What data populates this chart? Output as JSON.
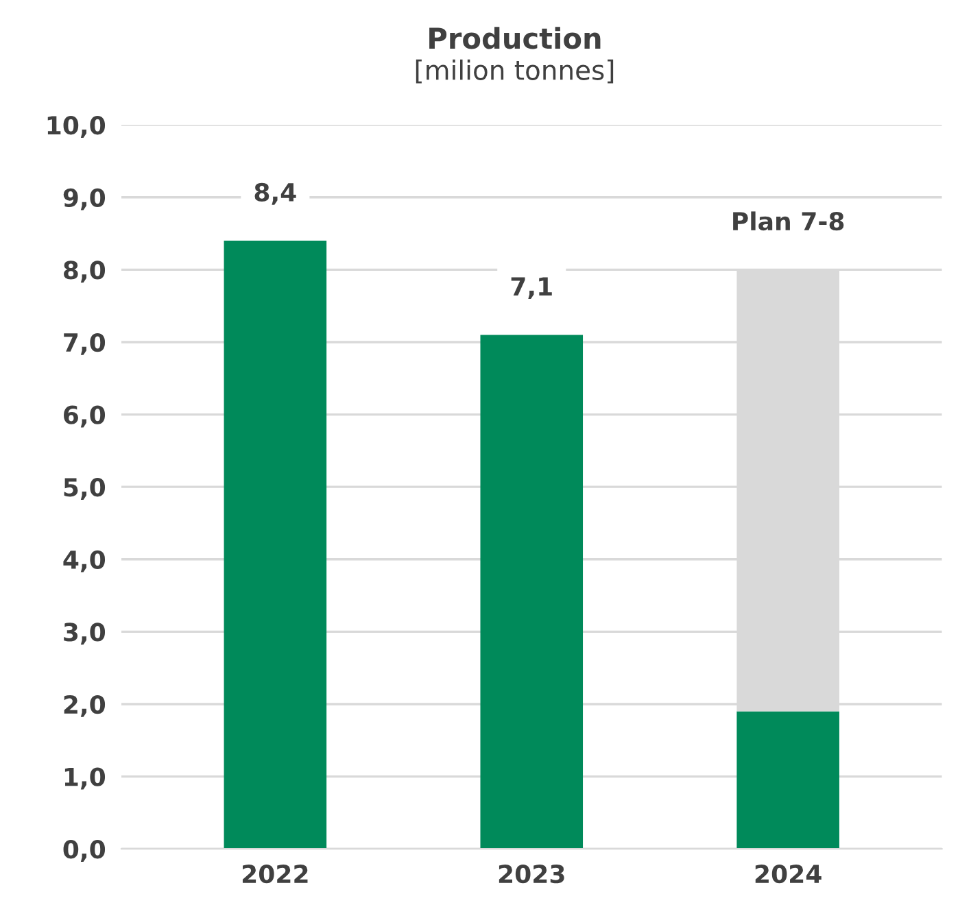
{
  "chart_data": {
    "type": "bar",
    "title": "Production",
    "subtitle": "[milion tonnes]",
    "categories": [
      "2022",
      "2023",
      "2024"
    ],
    "stacked": true,
    "series": [
      {
        "color": "#008a5a",
        "values": [
          8.4,
          7.1,
          1.9
        ],
        "value_labels": [
          "8,4",
          "7,1",
          null
        ]
      },
      {
        "color": "#d9d9d9",
        "values": [
          null,
          null,
          6.1
        ],
        "value_labels": [
          null,
          null,
          "Plan 7-8"
        ]
      }
    ],
    "ylim": [
      0,
      10
    ],
    "yticks": [
      {
        "value": 0,
        "label": "0,0"
      },
      {
        "value": 1,
        "label": "1,0"
      },
      {
        "value": 2,
        "label": "2,0"
      },
      {
        "value": 3,
        "label": "3,0"
      },
      {
        "value": 4,
        "label": "4,0"
      },
      {
        "value": 5,
        "label": "5,0"
      },
      {
        "value": 6,
        "label": "6,0"
      },
      {
        "value": 7,
        "label": "7,0"
      },
      {
        "value": 8,
        "label": "8,0"
      },
      {
        "value": 9,
        "label": "9,0"
      },
      {
        "value": 10,
        "label": "10,0"
      }
    ],
    "grid": "y",
    "legend": false
  }
}
